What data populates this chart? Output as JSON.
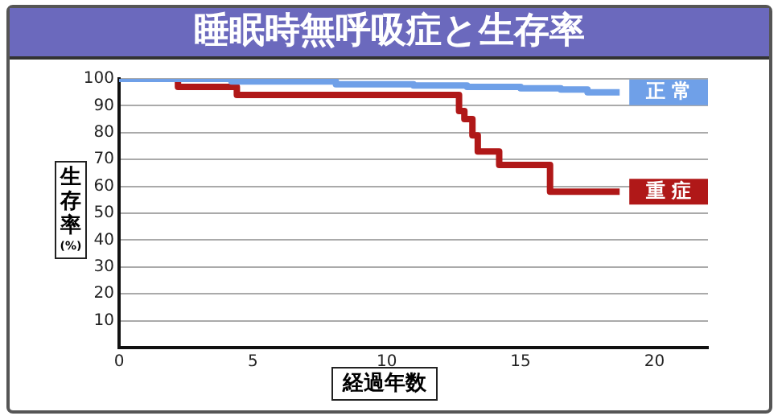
{
  "chart_data": {
    "type": "step",
    "title": "睡眠時無呼吸症と生存率",
    "xlabel": "経過年数",
    "ylabel": "生存率(%)",
    "xlim": [
      0,
      22
    ],
    "xticks": [
      0,
      5,
      10,
      15,
      20
    ],
    "ylim": [
      0,
      100
    ],
    "yticks": [
      {
        "value": 0,
        "label": null
      },
      10,
      20,
      30,
      40,
      50,
      60,
      70,
      80,
      90,
      100
    ],
    "grid": "y",
    "series": [
      {
        "name": "正常",
        "color": "#6fa0e8",
        "x": [
          0,
          4.2,
          8.1,
          11,
          13,
          15,
          16.5,
          17.5,
          18.7
        ],
        "values": [
          100,
          99,
          98,
          97.5,
          97,
          96.5,
          96,
          95,
          95
        ]
      },
      {
        "name": "重症",
        "color": "#b01818",
        "x": [
          0,
          2.2,
          4.4,
          12.7,
          12.9,
          13.2,
          13.4,
          14.2,
          16.1,
          18.7
        ],
        "values": [
          100,
          97,
          94,
          88,
          85,
          79,
          73,
          68,
          58,
          58
        ]
      }
    ]
  }
}
